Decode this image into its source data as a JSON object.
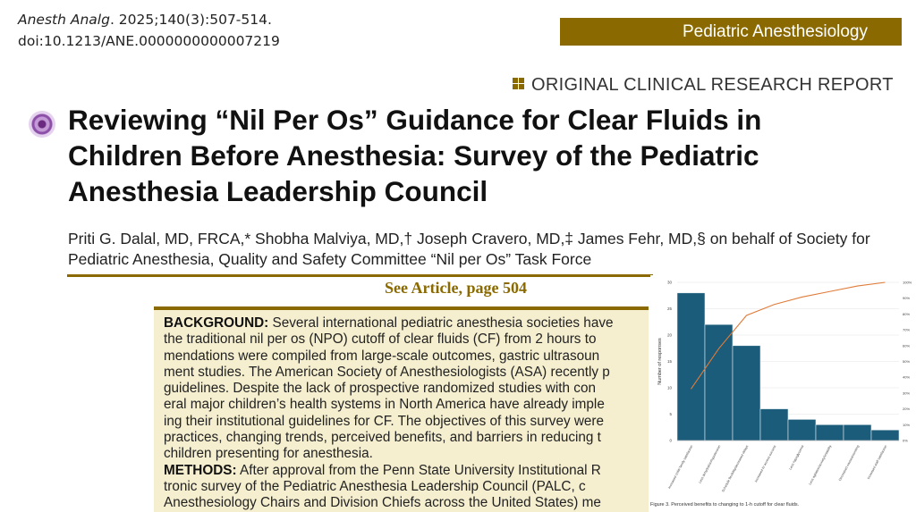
{
  "citation": {
    "journal": "Anesth Analg",
    "rest": ". 2025;140(3):507-514.",
    "doi": "doi:10.1213/ANE.0000000000007219"
  },
  "section_label": "Pediatric Anesthesiology",
  "report_type": "ORIGINAL CLINICAL RESEARCH REPORT",
  "title": "Reviewing “Nil Per Os” Guidance for Clear Fluids in Children Before Anesthesia: Survey of the Pediatric Anesthesia Leadership Council",
  "authors": "Priti G. Dalal, MD, FRCA,* Shobha Malviya, MD,† Joseph Cravero, MD,‡ James Fehr, MD,§ on behalf of Society for Pediatric Anesthesia, Quality and Safety Committee “Nil per Os” Task Force",
  "see_article": "See Article, page 504",
  "abstract": {
    "lines": [
      {
        "head": "BACKGROUND:",
        "text": " Several international pediatric anesthesia societies have"
      },
      {
        "text": "the traditional nil per os (NPO) cutoff of clear fluids (CF) from 2 hours to"
      },
      {
        "text": "mendations were compiled from large-scale outcomes, gastric ultrasoun"
      },
      {
        "text": "ment studies. The American Society of Anesthesiologists (ASA) recently p"
      },
      {
        "text": "guidelines. Despite the lack of prospective randomized studies with con"
      },
      {
        "text": "eral major children’s health systems in North America have already imple"
      },
      {
        "text": "ing their institutional guidelines for CF. The objectives of this survey were"
      },
      {
        "text": "practices, changing trends, perceived benefits, and barriers in reducing t"
      },
      {
        "text": "children presenting for anesthesia."
      },
      {
        "head": "METHODS:",
        "text": " After approval from the Penn State University Institutional R"
      },
      {
        "text": "tronic survey of the Pediatric Anesthesia Leadership Council (PALC, c"
      },
      {
        "text": "Anesthesiology Chairs and Division Chiefs across the United States) me"
      }
    ]
  },
  "colors": {
    "accent": "#8a6a00",
    "bar": "#1b5c7a",
    "line": "#e07b39",
    "abstract_bg": "#f5efcf"
  },
  "chart_data": {
    "type": "bar",
    "caption": "Figure 3. Perceived benefits to changing to 1-h cutoff for clear fluids.",
    "ylabel": "Number of responses",
    "ylim": [
      0,
      30
    ],
    "yticks": [
      0,
      5,
      10,
      15,
      20,
      25,
      30
    ],
    "y2lim": [
      0,
      100
    ],
    "y2ticks": [
      "0%",
      "10%",
      "20%",
      "30%",
      "40%",
      "50%",
      "60%",
      "70%",
      "80%",
      "90%",
      "100%"
    ],
    "grid": true,
    "categories": [
      "Increased child/ family satisfaction",
      "Less dehydration/hypotension",
      "Schedule flexibility/decreased delays",
      "Increased IV access success",
      "Less hypoglycemia",
      "Less agitation/anxiety/irritability",
      "Decreased nausea/vomiting",
      "Increased staff satisfaction"
    ],
    "values": [
      28,
      22,
      18,
      6,
      4,
      3,
      3,
      2
    ],
    "cumulative_percent": [
      32.6,
      58.1,
      79.1,
      86.0,
      90.7,
      94.2,
      97.7,
      100
    ]
  }
}
